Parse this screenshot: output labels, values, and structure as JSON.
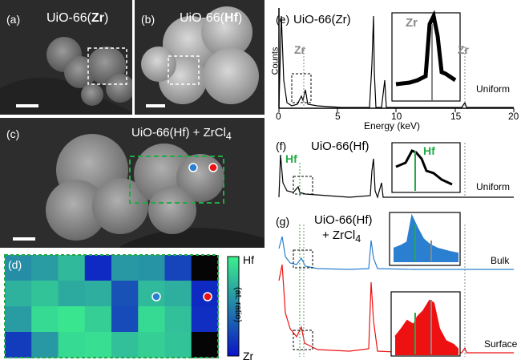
{
  "panel_a": {
    "label": "(a)",
    "title": "UiO-66(",
    "title_bold": "Zr",
    "title_end": ")"
  },
  "panel_b": {
    "label": "(b)",
    "title": "UiO-66(",
    "title_bold": "Hf",
    "title_end": ")"
  },
  "panel_c": {
    "label": "(c)",
    "title": "UiO-66(Hf) + ZrCl",
    "sub": "4"
  },
  "panel_d": {
    "label": "(d)",
    "cbar_top": "Hf",
    "cbar_bottom": "Zr",
    "cbar_label": "(at. ratio)",
    "colors": {
      "hf": "#3cf08c",
      "zr": "#0a14c8"
    },
    "grid": [
      [
        0.55,
        0.62,
        0.75,
        0.1,
        0.6,
        0.58,
        0.22,
        0.0
      ],
      [
        0.72,
        0.8,
        0.68,
        0.7,
        0.28,
        0.75,
        0.7,
        0.1
      ],
      [
        0.62,
        0.9,
        0.95,
        0.85,
        0.25,
        0.9,
        0.78,
        0.12
      ],
      [
        0.18,
        0.6,
        0.9,
        0.92,
        0.78,
        0.85,
        0.8,
        0.0
      ]
    ]
  },
  "panel_e": {
    "label": "(e)",
    "title": "UiO-66(Zr)",
    "ylabel": "Counts",
    "xlabel": "Energy (keV)",
    "ticks": [
      "0",
      "5",
      "10",
      "15",
      "20"
    ],
    "peak1": "Zr",
    "peak2": "Zr",
    "inset_label": "Zr",
    "note": "Uniform"
  },
  "panel_f": {
    "label": "(f)",
    "title": "UiO-66(Hf)",
    "peak": "Hf",
    "inset_label": "Hf",
    "note": "Uniform"
  },
  "panel_g": {
    "label": "(g)",
    "title_line1": "UiO-66(Hf)",
    "title_line2": "+ ZrCl",
    "sub": "4",
    "note_bulk": "Bulk",
    "note_surface": "Surface"
  },
  "colors": {
    "zr_marker": "#888888",
    "hf_marker": "#22aa44",
    "bulk": "#2a7fd0",
    "surface": "#ee1111"
  },
  "chart_data": [
    {
      "type": "line",
      "title": "UiO-66(Zr)",
      "xlabel": "Energy (keV)",
      "ylabel": "Counts",
      "xlim": [
        0,
        20
      ],
      "series": [
        {
          "x": [
            0.5,
            2.0,
            8.0,
            8.9,
            15.7
          ],
          "y": [
            1.0,
            0.25,
            0.85,
            0.3,
            0.08
          ]
        }
      ]
    },
    {
      "type": "line",
      "title": "UiO-66(Hf)",
      "xlim": [
        0,
        20
      ],
      "series": [
        {
          "x": [
            0.5,
            1.6,
            8.0,
            8.9
          ],
          "y": [
            1.0,
            0.2,
            0.55,
            0.35
          ]
        }
      ]
    },
    {
      "type": "line",
      "title": "UiO-66(Hf) + ZrCl4",
      "xlim": [
        0,
        20
      ],
      "series": [
        {
          "name": "Bulk",
          "x": [
            0.2,
            1.6,
            8.0
          ],
          "y": [
            0.6,
            0.25,
            0.6
          ]
        },
        {
          "name": "Surface",
          "x": [
            0.2,
            2.0,
            8.0
          ],
          "y": [
            1.0,
            0.55,
            0.85
          ]
        }
      ]
    }
  ]
}
